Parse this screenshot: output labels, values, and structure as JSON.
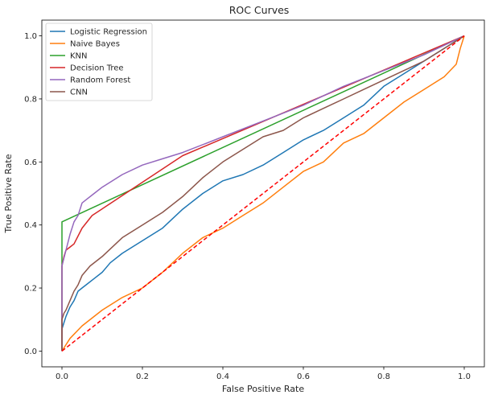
{
  "chart_data": {
    "type": "line",
    "title": "ROC Curves",
    "xlabel": "False Positive Rate",
    "ylabel": "True Positive Rate",
    "xlim": [
      -0.05,
      1.05
    ],
    "ylim": [
      -0.05,
      1.05
    ],
    "xticks": [
      "0.0",
      "0.2",
      "0.4",
      "0.6",
      "0.8",
      "1.0"
    ],
    "yticks": [
      "0.0",
      "0.2",
      "0.4",
      "0.6",
      "0.8",
      "1.0"
    ],
    "xtick_values": [
      0,
      0.2,
      0.4,
      0.6,
      0.8,
      1.0
    ],
    "ytick_values": [
      0,
      0.2,
      0.4,
      0.6,
      0.8,
      1.0
    ],
    "grid": false,
    "legend": "top-left",
    "series": [
      {
        "name": "Logistic Regression",
        "color": "#1f77b4",
        "x": [
          0.0,
          0.0,
          0.005,
          0.01,
          0.02,
          0.03,
          0.04,
          0.05,
          0.06,
          0.08,
          0.1,
          0.12,
          0.15,
          0.2,
          0.25,
          0.3,
          0.35,
          0.4,
          0.45,
          0.5,
          0.55,
          0.6,
          0.65,
          0.7,
          0.75,
          0.8,
          0.85,
          0.9,
          0.95,
          1.0
        ],
        "y": [
          0.0,
          0.07,
          0.09,
          0.11,
          0.14,
          0.16,
          0.19,
          0.2,
          0.21,
          0.23,
          0.25,
          0.28,
          0.31,
          0.35,
          0.39,
          0.45,
          0.5,
          0.54,
          0.56,
          0.59,
          0.63,
          0.67,
          0.7,
          0.74,
          0.78,
          0.84,
          0.88,
          0.92,
          0.96,
          1.0
        ]
      },
      {
        "name": "Naive Bayes",
        "color": "#ff7f0e",
        "x": [
          0.0,
          0.02,
          0.05,
          0.1,
          0.15,
          0.2,
          0.25,
          0.3,
          0.35,
          0.4,
          0.45,
          0.5,
          0.55,
          0.6,
          0.65,
          0.7,
          0.75,
          0.8,
          0.85,
          0.9,
          0.95,
          0.98,
          0.99,
          1.0
        ],
        "y": [
          0.0,
          0.04,
          0.08,
          0.13,
          0.17,
          0.2,
          0.25,
          0.31,
          0.36,
          0.39,
          0.43,
          0.47,
          0.52,
          0.57,
          0.6,
          0.66,
          0.69,
          0.74,
          0.79,
          0.83,
          0.87,
          0.91,
          0.96,
          1.0
        ]
      },
      {
        "name": "KNN",
        "color": "#2ca02c",
        "x": [
          0.0,
          0.0,
          1.0
        ],
        "y": [
          0.0,
          0.41,
          1.0
        ]
      },
      {
        "name": "Decision Tree",
        "color": "#d62728",
        "x": [
          0.0,
          0.0,
          0.005,
          0.01,
          0.02,
          0.03,
          0.05,
          0.075,
          0.3,
          1.0
        ],
        "y": [
          0.0,
          0.27,
          0.3,
          0.32,
          0.33,
          0.34,
          0.39,
          0.43,
          0.62,
          1.0
        ]
      },
      {
        "name": "Random Forest",
        "color": "#9467bd",
        "x": [
          0.0,
          0.0,
          0.01,
          0.02,
          0.03,
          0.04,
          0.05,
          0.06,
          0.08,
          0.1,
          0.15,
          0.2,
          0.25,
          0.3,
          0.4,
          0.5,
          0.6,
          0.7,
          0.8,
          0.9,
          1.0
        ],
        "y": [
          0.0,
          0.27,
          0.32,
          0.37,
          0.41,
          0.43,
          0.47,
          0.48,
          0.5,
          0.52,
          0.56,
          0.59,
          0.61,
          0.63,
          0.68,
          0.73,
          0.78,
          0.84,
          0.89,
          0.94,
          1.0
        ]
      },
      {
        "name": "CNN",
        "color": "#8c564b",
        "x": [
          0.0,
          0.0,
          0.005,
          0.01,
          0.02,
          0.03,
          0.04,
          0.05,
          0.07,
          0.1,
          0.15,
          0.2,
          0.25,
          0.3,
          0.35,
          0.4,
          0.45,
          0.5,
          0.55,
          0.6,
          0.65,
          0.7,
          0.75,
          0.8,
          0.85,
          0.9,
          0.95,
          1.0
        ],
        "y": [
          0.0,
          0.1,
          0.12,
          0.13,
          0.16,
          0.19,
          0.21,
          0.24,
          0.27,
          0.3,
          0.36,
          0.4,
          0.44,
          0.49,
          0.55,
          0.6,
          0.64,
          0.68,
          0.7,
          0.74,
          0.77,
          0.8,
          0.83,
          0.86,
          0.89,
          0.92,
          0.96,
          1.0
        ]
      },
      {
        "name": "",
        "color": "#ff0000",
        "dashed": true,
        "x": [
          0.0,
          1.0
        ],
        "y": [
          0.0,
          1.0
        ]
      }
    ]
  }
}
